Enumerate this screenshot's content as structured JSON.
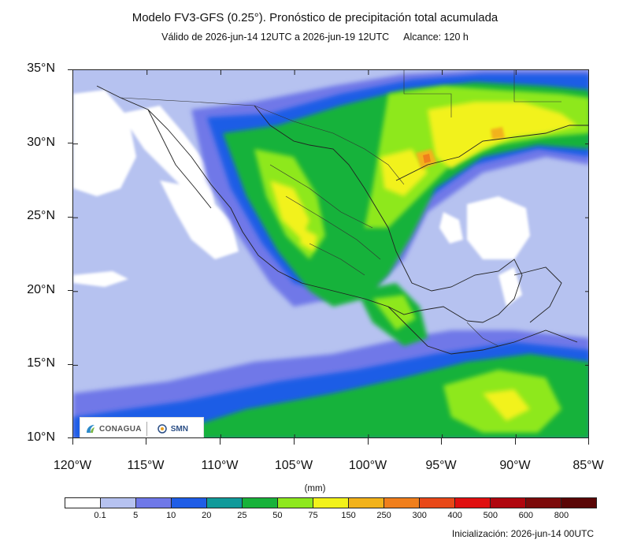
{
  "title": "Modelo FV3-GFS (0.25°). Pronóstico de precipitación total acumulada",
  "subtitle": {
    "valid": "Válido de 2026-jun-14 12UTC a 2026-jun-19 12UTC",
    "range": "Alcance: 120 h"
  },
  "axes": {
    "lat_labels": [
      "35°N",
      "30°N",
      "25°N",
      "20°N",
      "15°N",
      "10°N"
    ],
    "lon_labels": [
      "120°W",
      "115°W",
      "110°W",
      "105°W",
      "100°W",
      "95°W",
      "90°W",
      "85°W"
    ],
    "lat_range": [
      10,
      35
    ],
    "lon_range": [
      -120,
      -85
    ]
  },
  "colorbar": {
    "units": "(mm)",
    "labels": [
      "0.1",
      "5",
      "10",
      "20",
      "25",
      "50",
      "75",
      "150",
      "250",
      "300",
      "400",
      "500",
      "600",
      "800"
    ],
    "colors": [
      "#ffffff",
      "#b6c2f0",
      "#6f78e8",
      "#1f5de6",
      "#119a9a",
      "#18b23a",
      "#8ee81e",
      "#f2f21a",
      "#f2b21a",
      "#f07f1c",
      "#e84818",
      "#e01010",
      "#b0060e",
      "#7c0a0a",
      "#5a0606"
    ]
  },
  "logos": {
    "conagua": "CONAGUA",
    "smn": "SMN"
  },
  "init": "Inicialización: 2026-jun-14 00UTC",
  "colors": {
    "ocean_low": "#b6c2f0",
    "dry": "#ffffff",
    "coast": "#222222"
  }
}
